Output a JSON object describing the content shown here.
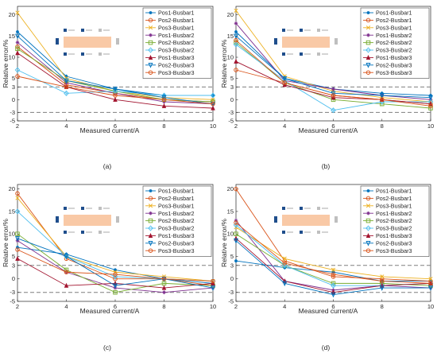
{
  "figure": {
    "colors": {
      "axis": "#262626",
      "grid_dash": "#7f7f7f",
      "inset_fill": "#f9c9a6",
      "inset_block": "#1f4e8c",
      "inset_gray": "#bfbfbf"
    },
    "panel_labels": [
      "(a)",
      "(b)",
      "(c)",
      "(d)"
    ]
  },
  "chart_data": [
    {
      "type": "line",
      "panel_label": "(a)",
      "xlabel": "Measured current/A",
      "ylabel": "Relative error/%",
      "x": [
        2,
        4,
        6,
        8,
        10
      ],
      "xlim": [
        2,
        10
      ],
      "ylim": [
        -5,
        22
      ],
      "xticks": [
        2,
        4,
        6,
        8,
        10
      ],
      "yticks": [
        -5,
        -3,
        0,
        3,
        5,
        10,
        15,
        20
      ],
      "reference_lines": [
        3,
        -3
      ],
      "legend_position": "top-right",
      "series": [
        {
          "name": "Pos1-Busbar1",
          "color": "#0072bd",
          "marker": "point",
          "values": [
            16.0,
            5.5,
            2.5,
            1.0,
            1.0
          ]
        },
        {
          "name": "Pos2-Busbar1",
          "color": "#d95319",
          "marker": "circle",
          "values": [
            12.5,
            3.5,
            1.5,
            0.0,
            -0.5
          ]
        },
        {
          "name": "Pos3-Busbar1",
          "color": "#edb120",
          "marker": "x",
          "values": [
            20.5,
            5.0,
            2.0,
            0.5,
            0.0
          ]
        },
        {
          "name": "Pos1-Busbar2",
          "color": "#7e2f8e",
          "marker": "star",
          "values": [
            13.5,
            4.0,
            1.5,
            -0.5,
            -1.0
          ]
        },
        {
          "name": "Pos2-Busbar2",
          "color": "#77ac30",
          "marker": "square",
          "values": [
            12.0,
            4.5,
            2.0,
            0.0,
            -0.5
          ]
        },
        {
          "name": "Pos3-Busbar2",
          "color": "#4dbeee",
          "marker": "diamond",
          "values": [
            7.0,
            1.5,
            2.0,
            1.0,
            1.0
          ]
        },
        {
          "name": "Pos1-Busbar3",
          "color": "#a2142f",
          "marker": "triangle-up",
          "values": [
            11.0,
            3.0,
            0.0,
            -1.5,
            -2.0
          ]
        },
        {
          "name": "Pos2-Busbar3",
          "color": "#0072bd",
          "marker": "triangle-down",
          "values": [
            15.0,
            4.5,
            2.5,
            0.5,
            -1.0
          ]
        },
        {
          "name": "Pos3-Busbar3",
          "color": "#d95319",
          "marker": "circle",
          "values": [
            5.5,
            3.0,
            1.0,
            0.0,
            -1.0
          ]
        }
      ]
    },
    {
      "type": "line",
      "panel_label": "(b)",
      "xlabel": "Measured current/A",
      "ylabel": "Relative error/%",
      "x": [
        2,
        4,
        6,
        8,
        10
      ],
      "xlim": [
        2,
        10
      ],
      "ylim": [
        -5,
        22
      ],
      "xticks": [
        2,
        4,
        6,
        8,
        10
      ],
      "yticks": [
        -5,
        -3,
        0,
        3,
        5,
        10,
        15,
        20
      ],
      "reference_lines": [
        3,
        -3
      ],
      "legend_position": "top-right",
      "series": [
        {
          "name": "Pos1-Busbar1",
          "color": "#0072bd",
          "marker": "point",
          "values": [
            16.0,
            5.0,
            2.5,
            1.5,
            1.0
          ]
        },
        {
          "name": "Pos2-Busbar1",
          "color": "#d95319",
          "marker": "circle",
          "values": [
            7.0,
            4.0,
            1.0,
            0.0,
            -1.0
          ]
        },
        {
          "name": "Pos3-Busbar1",
          "color": "#edb120",
          "marker": "x",
          "values": [
            21.0,
            5.5,
            2.0,
            0.5,
            -0.5
          ]
        },
        {
          "name": "Pos1-Busbar2",
          "color": "#7e2f8e",
          "marker": "star",
          "values": [
            18.0,
            4.5,
            2.5,
            1.0,
            0.0
          ]
        },
        {
          "name": "Pos2-Busbar2",
          "color": "#77ac30",
          "marker": "square",
          "values": [
            13.5,
            4.0,
            0.0,
            -1.0,
            -2.0
          ]
        },
        {
          "name": "Pos3-Busbar2",
          "color": "#4dbeee",
          "marker": "diamond",
          "values": [
            13.0,
            4.5,
            -2.5,
            -0.5,
            -0.5
          ]
        },
        {
          "name": "Pos1-Busbar3",
          "color": "#a2142f",
          "marker": "triangle-up",
          "values": [
            9.0,
            3.5,
            0.5,
            0.0,
            -1.0
          ]
        },
        {
          "name": "Pos2-Busbar3",
          "color": "#0072bd",
          "marker": "triangle-down",
          "values": [
            15.0,
            5.0,
            1.5,
            1.0,
            0.5
          ]
        },
        {
          "name": "Pos3-Busbar3",
          "color": "#d95319",
          "marker": "circle",
          "values": [
            14.0,
            4.0,
            1.0,
            0.0,
            -1.5
          ]
        }
      ]
    },
    {
      "type": "line",
      "panel_label": "(c)",
      "xlabel": "Measured current/A",
      "ylabel": "Relative error/%",
      "x": [
        2,
        4,
        6,
        8,
        10
      ],
      "xlim": [
        2,
        10
      ],
      "ylim": [
        -5,
        21
      ],
      "xticks": [
        2,
        4,
        6,
        8,
        10
      ],
      "yticks": [
        -5,
        -3,
        0,
        3,
        5,
        10,
        15,
        20
      ],
      "reference_lines": [
        3,
        -3
      ],
      "legend_position": "top-right",
      "series": [
        {
          "name": "Pos1-Busbar1",
          "color": "#0072bd",
          "marker": "point",
          "values": [
            7.0,
            5.5,
            2.0,
            0.0,
            -1.0
          ]
        },
        {
          "name": "Pos2-Busbar1",
          "color": "#d95319",
          "marker": "circle",
          "values": [
            19.0,
            4.5,
            0.0,
            0.0,
            -1.5
          ]
        },
        {
          "name": "Pos3-Busbar1",
          "color": "#edb120",
          "marker": "x",
          "values": [
            18.0,
            5.0,
            1.5,
            0.5,
            -0.5
          ]
        },
        {
          "name": "Pos1-Busbar2",
          "color": "#7e2f8e",
          "marker": "star",
          "values": [
            8.5,
            1.5,
            -2.0,
            -3.0,
            -2.0
          ]
        },
        {
          "name": "Pos2-Busbar2",
          "color": "#77ac30",
          "marker": "square",
          "values": [
            10.0,
            2.0,
            -3.0,
            -1.0,
            -1.5
          ]
        },
        {
          "name": "Pos3-Busbar2",
          "color": "#4dbeee",
          "marker": "diamond",
          "values": [
            15.0,
            5.0,
            0.5,
            0.0,
            -0.5
          ]
        },
        {
          "name": "Pos1-Busbar3",
          "color": "#a2142f",
          "marker": "triangle-up",
          "values": [
            4.5,
            -1.5,
            -1.0,
            -2.0,
            -1.0
          ]
        },
        {
          "name": "Pos2-Busbar3",
          "color": "#0072bd",
          "marker": "triangle-down",
          "values": [
            9.0,
            5.0,
            -1.5,
            0.0,
            -2.0
          ]
        },
        {
          "name": "Pos3-Busbar3",
          "color": "#d95319",
          "marker": "circle",
          "values": [
            6.5,
            1.5,
            1.0,
            0.0,
            -0.5
          ]
        }
      ]
    },
    {
      "type": "line",
      "panel_label": "(d)",
      "xlabel": "Measured current/A",
      "ylabel": "Relative error/%",
      "x": [
        2,
        4,
        6,
        8,
        10
      ],
      "xlim": [
        2,
        10
      ],
      "ylim": [
        -5,
        21
      ],
      "xticks": [
        2,
        4,
        6,
        8,
        10
      ],
      "yticks": [
        -5,
        -3,
        0,
        3,
        5,
        10,
        15,
        20
      ],
      "reference_lines": [
        3,
        -3
      ],
      "legend_position": "top-right",
      "series": [
        {
          "name": "Pos1-Busbar1",
          "color": "#0072bd",
          "marker": "point",
          "values": [
            4.0,
            2.5,
            1.5,
            -0.5,
            -0.5
          ]
        },
        {
          "name": "Pos2-Busbar1",
          "color": "#d95319",
          "marker": "circle",
          "values": [
            20.0,
            4.0,
            0.5,
            0.0,
            -0.5
          ]
        },
        {
          "name": "Pos3-Busbar1",
          "color": "#edb120",
          "marker": "x",
          "values": [
            11.5,
            4.5,
            2.0,
            0.5,
            0.0
          ]
        },
        {
          "name": "Pos1-Busbar2",
          "color": "#7e2f8e",
          "marker": "star",
          "values": [
            13.0,
            -0.5,
            -2.5,
            -1.5,
            -2.0
          ]
        },
        {
          "name": "Pos2-Busbar2",
          "color": "#77ac30",
          "marker": "square",
          "values": [
            10.0,
            3.0,
            -1.0,
            -1.0,
            -1.5
          ]
        },
        {
          "name": "Pos3-Busbar2",
          "color": "#4dbeee",
          "marker": "diamond",
          "values": [
            12.0,
            3.0,
            -1.5,
            -1.5,
            -1.0
          ]
        },
        {
          "name": "Pos1-Busbar3",
          "color": "#a2142f",
          "marker": "triangle-up",
          "values": [
            9.0,
            -0.5,
            -3.0,
            -1.5,
            -1.0
          ]
        },
        {
          "name": "Pos2-Busbar3",
          "color": "#0072bd",
          "marker": "triangle-down",
          "values": [
            8.5,
            -1.0,
            -3.5,
            -2.0,
            -2.0
          ]
        },
        {
          "name": "Pos3-Busbar3",
          "color": "#d95319",
          "marker": "circle",
          "values": [
            12.5,
            3.5,
            1.0,
            -0.5,
            -1.0
          ]
        }
      ]
    }
  ]
}
